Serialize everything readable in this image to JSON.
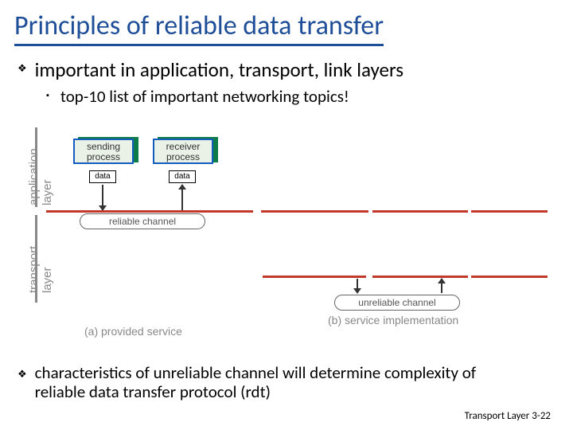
{
  "title": "Principles of reliable data transfer",
  "bullets": {
    "b1": "important in application, transport, link layers",
    "b2": "top-10 list of important networking topics!",
    "b3": "characteristics of unreliable channel will determine complexity of reliable data transfer protocol (rdt)"
  },
  "diagram": {
    "layer_labels": {
      "application": "application\nlayer",
      "transport": "transport\nlayer"
    },
    "sending_process": "sending process",
    "receiver_process": "receiver process",
    "data_label": "data",
    "reliable_channel": "reliable channel",
    "unreliable_channel": "unreliable channel",
    "caption_a": "(a)  provided service",
    "caption_b": "(b) service implementation",
    "colors": {
      "title_color": "#1f4e99",
      "red_divider": "#c0392b",
      "process_border": "#155cc0",
      "process_shadow": "#0e7c48",
      "gray_text": "#888888"
    }
  },
  "footer": {
    "label": "Transport Layer",
    "page": "3-22"
  }
}
